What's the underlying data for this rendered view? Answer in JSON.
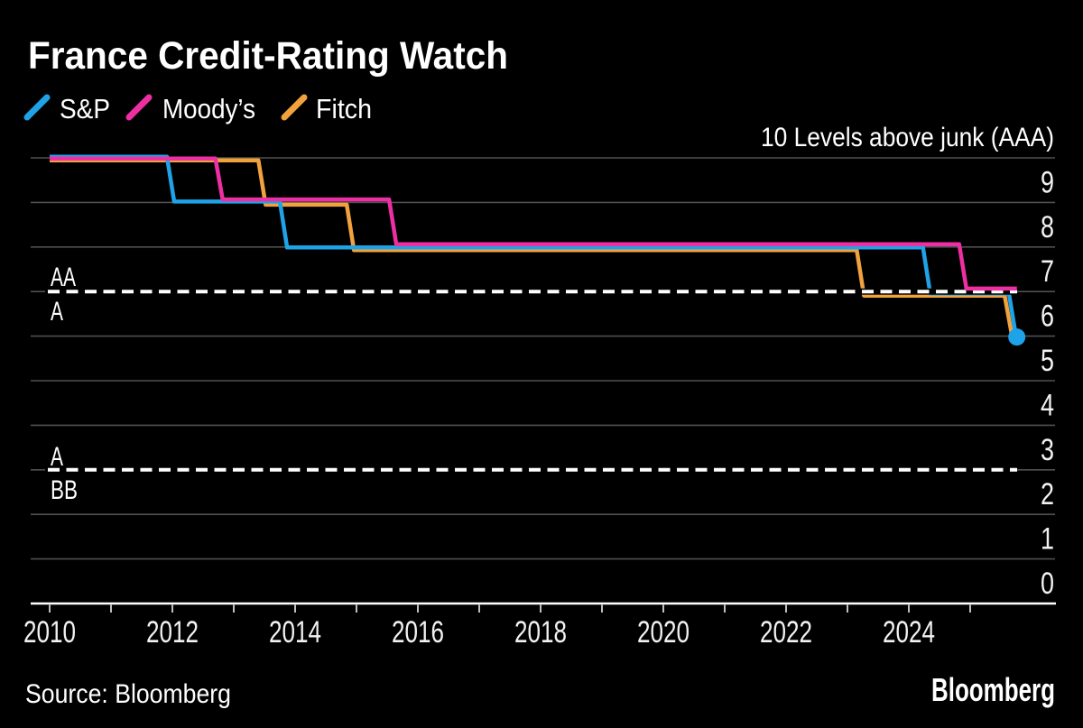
{
  "title": "France Credit-Rating Watch",
  "source": "Source: Bloomberg",
  "brand": "Bloomberg",
  "legend": [
    {
      "label": "S&P",
      "color": "#1FA3E8"
    },
    {
      "label": "Moody’s",
      "color": "#EE2FA3"
    },
    {
      "label": "Fitch",
      "color": "#F2A23C"
    }
  ],
  "colors": {
    "background": "#000000",
    "gridline": "#505050",
    "axis": "#FFFFFF",
    "text": "#FFFFFF",
    "sp_blue": "#1FA3E8",
    "moodys_magenta": "#EE2FA3",
    "fitch_orange": "#F2A23C"
  },
  "chart_data": {
    "type": "line",
    "subtype": "step-downgrade",
    "title": "France Credit-Rating Watch",
    "y_top_label": "10 Levels above junk (AAA)",
    "ylabel": "Levels above junk",
    "ylim": [
      0,
      10
    ],
    "y_tick_labels": [
      9,
      8,
      7,
      6,
      5,
      4,
      3,
      2,
      1,
      0
    ],
    "x_tick_labels": [
      2010,
      2012,
      2014,
      2016,
      2018,
      2020,
      2022,
      2024
    ],
    "x_minor_tick_years": [
      2010,
      2011,
      2012,
      2013,
      2014,
      2015,
      2016,
      2017,
      2018,
      2019,
      2020,
      2021,
      2022,
      2023,
      2024,
      2025
    ],
    "x_range_years": [
      2010,
      2025.8
    ],
    "grid": "horizontal-only",
    "legend_position": "top-left",
    "threshold_lines": [
      {
        "level": 7,
        "style": "dashed-white",
        "label_above": "AA",
        "label_below": "A"
      },
      {
        "level": 3,
        "style": "dashed-white",
        "label_above": "A",
        "label_below": "BB"
      }
    ],
    "series": [
      {
        "name": "S&P",
        "color": "#1FA3E8",
        "start_year": 2010.0,
        "start_level": 10,
        "end_year": 2025.76,
        "end_marker_dot": true,
        "downgrades": [
          {
            "year": 2011.97,
            "level": 9
          },
          {
            "year": 2013.81,
            "level": 8
          },
          {
            "year": 2024.29,
            "level": 7
          },
          {
            "year": 2025.69,
            "level": 6
          }
        ]
      },
      {
        "name": "Moody’s",
        "color": "#EE2FA3",
        "start_year": 2010.0,
        "start_level": 10,
        "end_year": 2025.76,
        "end_marker_dot": false,
        "downgrades": [
          {
            "year": 2012.76,
            "level": 9
          },
          {
            "year": 2015.59,
            "level": 8
          },
          {
            "year": 2024.88,
            "level": 7
          }
        ]
      },
      {
        "name": "Fitch",
        "color": "#F2A23C",
        "start_year": 2010.0,
        "start_level": 10,
        "end_year": 2025.76,
        "end_marker_dot": false,
        "downgrades": [
          {
            "year": 2013.46,
            "level": 9
          },
          {
            "year": 2014.9,
            "level": 8
          },
          {
            "year": 2023.21,
            "level": 7
          },
          {
            "year": 2025.62,
            "level": 6
          }
        ]
      }
    ]
  }
}
